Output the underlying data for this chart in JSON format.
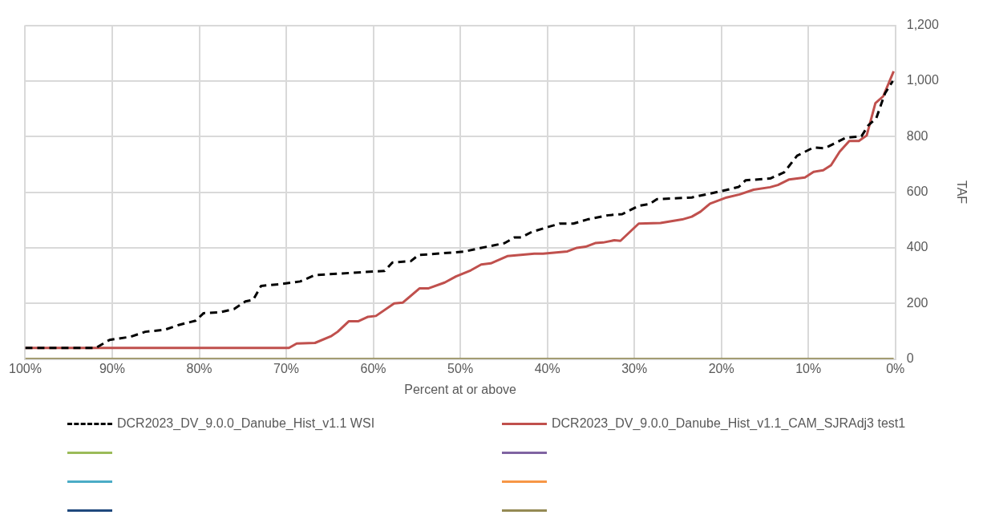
{
  "chart_data": {
    "type": "line",
    "xlabel": "Percent at or above",
    "ylabel": "TAF",
    "legend": "bottom",
    "grid": true,
    "xlim": [
      100,
      0
    ],
    "xticks": [
      {
        "value": 100,
        "label": "100%"
      },
      {
        "value": 90,
        "label": "90%"
      },
      {
        "value": 80,
        "label": "80%"
      },
      {
        "value": 70,
        "label": "70%"
      },
      {
        "value": 60,
        "label": "60%"
      },
      {
        "value": 50,
        "label": "50%"
      },
      {
        "value": 40,
        "label": "40%"
      },
      {
        "value": 30,
        "label": "30%"
      },
      {
        "value": 20,
        "label": "20%"
      },
      {
        "value": 10,
        "label": "10%"
      },
      {
        "value": 0,
        "label": "0%"
      }
    ],
    "ylim": [
      0,
      1200
    ],
    "yticks": [
      0,
      200,
      400,
      600,
      800,
      {
        "value": 1000,
        "label": "1,000"
      },
      {
        "value": 1200,
        "label": "1,200"
      }
    ],
    "series": [
      {
        "name": "DCR2023_DV_9.0.0_Danube_Hist_v1.1 WSI",
        "color": "#000000",
        "line_style": "dashed",
        "x": [
          100,
          91.9,
          90.3,
          87.9,
          86.2,
          84,
          82.3,
          80.4,
          79.5,
          77.6,
          76,
          74.7,
          73.8,
          72.9,
          70.7,
          68.4,
          66.7,
          58.7,
          57.8,
          55.7,
          54.8,
          49.6,
          47.7,
          44.9,
          43.8,
          43,
          41.8,
          39.9,
          38.6,
          37,
          35.4,
          33,
          31.4,
          29.5,
          28.3,
          27.4,
          23.4,
          19.4,
          18,
          17.2,
          14.4,
          12.8,
          11.3,
          9.4,
          8.1,
          5.7,
          3.9,
          3.1,
          2.2,
          1.2,
          0.3
        ],
        "values": [
          40,
          40,
          69,
          80,
          98,
          105,
          123,
          138,
          165,
          168,
          180,
          207,
          213,
          263,
          269,
          279,
          302,
          317,
          347,
          352,
          374,
          386,
          399,
          417,
          437,
          437,
          457,
          475,
          487,
          487,
          502,
          517,
          521,
          551,
          557,
          575,
          581,
          608,
          619,
          643,
          649,
          671,
          731,
          761,
          758,
          796,
          801,
          841,
          866,
          955,
          1000
        ]
      },
      {
        "name": "DCR2023_DV_9.0.0_Danube_Hist_v1.1_CAM_SJRAdj3 test1",
        "color": "#c0504d",
        "line_style": "solid",
        "x": [
          100,
          69.7,
          68.8,
          66.7,
          64.8,
          64.1,
          62.8,
          61.7,
          60.6,
          59.7,
          57.6,
          56.6,
          54.7,
          53.7,
          51.8,
          50.5,
          48.8,
          47.6,
          46.5,
          44.6,
          41.5,
          40.5,
          37.7,
          36.6,
          35.6,
          34.5,
          33.6,
          32.3,
          31.6,
          29.5,
          27,
          24.5,
          23.4,
          22.4,
          21.3,
          19.4,
          17.9,
          16.3,
          14.4,
          13.5,
          12.2,
          10.4,
          9.4,
          8.3,
          7.4,
          6.4,
          5.3,
          4.2,
          3.3,
          2.3,
          1.4,
          0.2
        ],
        "values": [
          40,
          40,
          56,
          58,
          83,
          98,
          136,
          136,
          152,
          155,
          200,
          203,
          254,
          254,
          275,
          297,
          319,
          340,
          344,
          370,
          379,
          379,
          387,
          400,
          404,
          417,
          419,
          427,
          425,
          487,
          489,
          502,
          512,
          530,
          559,
          581,
          592,
          609,
          618,
          626,
          646,
          653,
          673,
          679,
          697,
          746,
          784,
          784,
          804,
          920,
          945,
          1035
        ]
      },
      {
        "color": "#9bbb59",
        "line_style": "solid"
      },
      {
        "color": "#8064a2",
        "line_style": "solid"
      },
      {
        "color": "#4bacc6",
        "line_style": "solid"
      },
      {
        "color": "#f79646",
        "line_style": "solid"
      },
      {
        "color": "#1f497d",
        "line_style": "solid"
      },
      {
        "color": "#948a54",
        "line_style": "solid",
        "x": [
          100,
          0.2
        ],
        "values": [
          0,
          0
        ]
      }
    ]
  }
}
